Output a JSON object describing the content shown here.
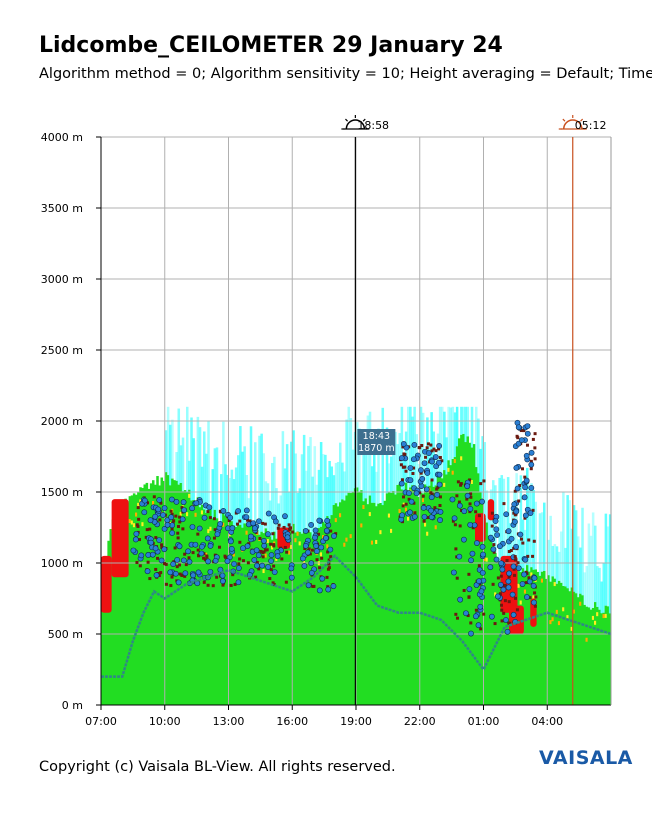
{
  "header": {
    "title": "Lidcombe_CEILOMETER 29 January 24",
    "subtitle": "Algorithm method = 0; Algorithm sensitivity = 10; Height averaging = Default; Time"
  },
  "footer": {
    "copyright": "Copyright (c) Vaisala BL-View. All rights reserved.",
    "logo": "VAISALA"
  },
  "chart_data": {
    "type": "heatmap",
    "title": "Lidcombe_CEILOMETER 29 January 24",
    "xlabel": "",
    "ylabel": "",
    "x_tick_labels": [
      "07:00",
      "10:00",
      "13:00",
      "16:00",
      "19:00",
      "22:00",
      "01:00",
      "04:00"
    ],
    "x_range_hours": [
      0,
      24
    ],
    "y_tick_labels": [
      "0 m",
      "500 m",
      "1000 m",
      "1500 m",
      "2000 m",
      "2500 m",
      "3000 m",
      "3500 m",
      "4000 m"
    ],
    "ylim": [
      0,
      4000
    ],
    "grid": true,
    "markers": [
      {
        "label": "18:58",
        "type": "sunset",
        "hour_offset": 11.97,
        "color": "#000000"
      },
      {
        "label": "05:12",
        "type": "sunrise",
        "hour_offset": 22.2,
        "color": "#c8501e"
      }
    ],
    "cursor_tooltip": {
      "time": "18:43",
      "height": "1870 m"
    },
    "colors": {
      "background_signal": "#22dd22",
      "high_backscatter": "#ee1111",
      "cloud_cells": "#6b1a10",
      "layer_dots": "#2a7fd4",
      "cyan_noise": "#33ffff",
      "mixing_layer_line": "#2e8a84"
    }
  }
}
